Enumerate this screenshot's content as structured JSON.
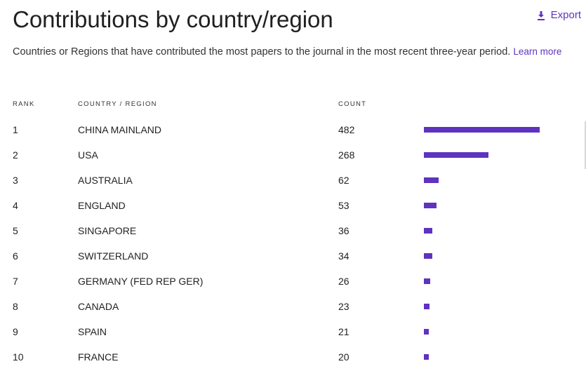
{
  "header": {
    "title": "Contributions by country/region",
    "export_label": "Export",
    "description": "Countries or Regions that have contributed the most papers to the journal in the most recent three-year period.",
    "learn_more": "Learn more"
  },
  "table": {
    "columns": {
      "rank": "RANK",
      "country": "COUNTRY / REGION",
      "count": "COUNT"
    },
    "max_count": 482,
    "rows": [
      {
        "rank": "1",
        "country": "CHINA MAINLAND",
        "count": "482"
      },
      {
        "rank": "2",
        "country": "USA",
        "count": "268"
      },
      {
        "rank": "3",
        "country": "AUSTRALIA",
        "count": "62"
      },
      {
        "rank": "4",
        "country": "ENGLAND",
        "count": "53"
      },
      {
        "rank": "5",
        "country": "SINGAPORE",
        "count": "36"
      },
      {
        "rank": "6",
        "country": "SWITZERLAND",
        "count": "34"
      },
      {
        "rank": "7",
        "country": "GERMANY (FED REP GER)",
        "count": "26"
      },
      {
        "rank": "8",
        "country": "CANADA",
        "count": "23"
      },
      {
        "rank": "9",
        "country": "SPAIN",
        "count": "21"
      },
      {
        "rank": "10",
        "country": "FRANCE",
        "count": "20"
      }
    ]
  },
  "colors": {
    "accent": "#5e33bf",
    "text": "#222222"
  },
  "icons": {
    "export": "download-icon"
  }
}
